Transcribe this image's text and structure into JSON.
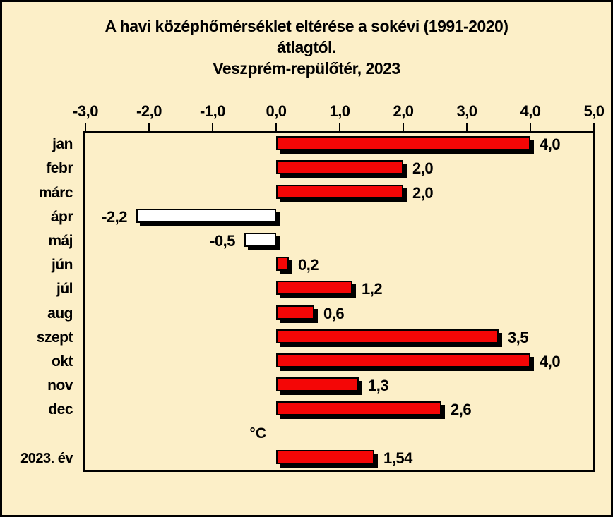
{
  "page": {
    "background_color": "#fcefc8",
    "frame_color": "#000000"
  },
  "title": {
    "line1": "A havi középhőmérséklet eltérése a sokévi (1991-2020)",
    "line2": "átlagtól.",
    "line3": "Veszprém-repülőtér, 2023"
  },
  "chart_data": {
    "type": "bar",
    "orientation": "horizontal",
    "title": "A havi középhőmérséklet eltérése a sokévi (1991-2020) átlagtól. Veszprém-repülőtér, 2023",
    "xlabel": "°C",
    "ylabel": "",
    "xlim": [
      -3.0,
      5.0
    ],
    "tick_step": 1.0,
    "x_tick_labels": [
      "-3,0",
      "-2,0",
      "-1,0",
      "0,0",
      "1,0",
      "2,0",
      "3,0",
      "4,0",
      "5,0"
    ],
    "categories": [
      "jan",
      "febr",
      "márc",
      "ápr",
      "máj",
      "jún",
      "júl",
      "aug",
      "szept",
      "okt",
      "nov",
      "dec"
    ],
    "values": [
      4.0,
      2.0,
      2.0,
      -2.2,
      -0.5,
      0.2,
      1.2,
      0.6,
      3.5,
      4.0,
      1.3,
      2.6
    ],
    "value_labels": [
      "4,0",
      "2,0",
      "2,0",
      "-2,2",
      "-0,5",
      "0,2",
      "1,2",
      "0,6",
      "3,5",
      "4,0",
      "1,3",
      "2,6"
    ],
    "unit_label": "°C",
    "summary": {
      "label": "2023. év",
      "value": 1.54,
      "value_label": "1,54"
    },
    "colors": {
      "positive_bar": "#f40606",
      "negative_bar": "#ffffff",
      "bar_border": "#000000",
      "bar_shadow": "#000000"
    },
    "grid": false,
    "legend": "none"
  }
}
